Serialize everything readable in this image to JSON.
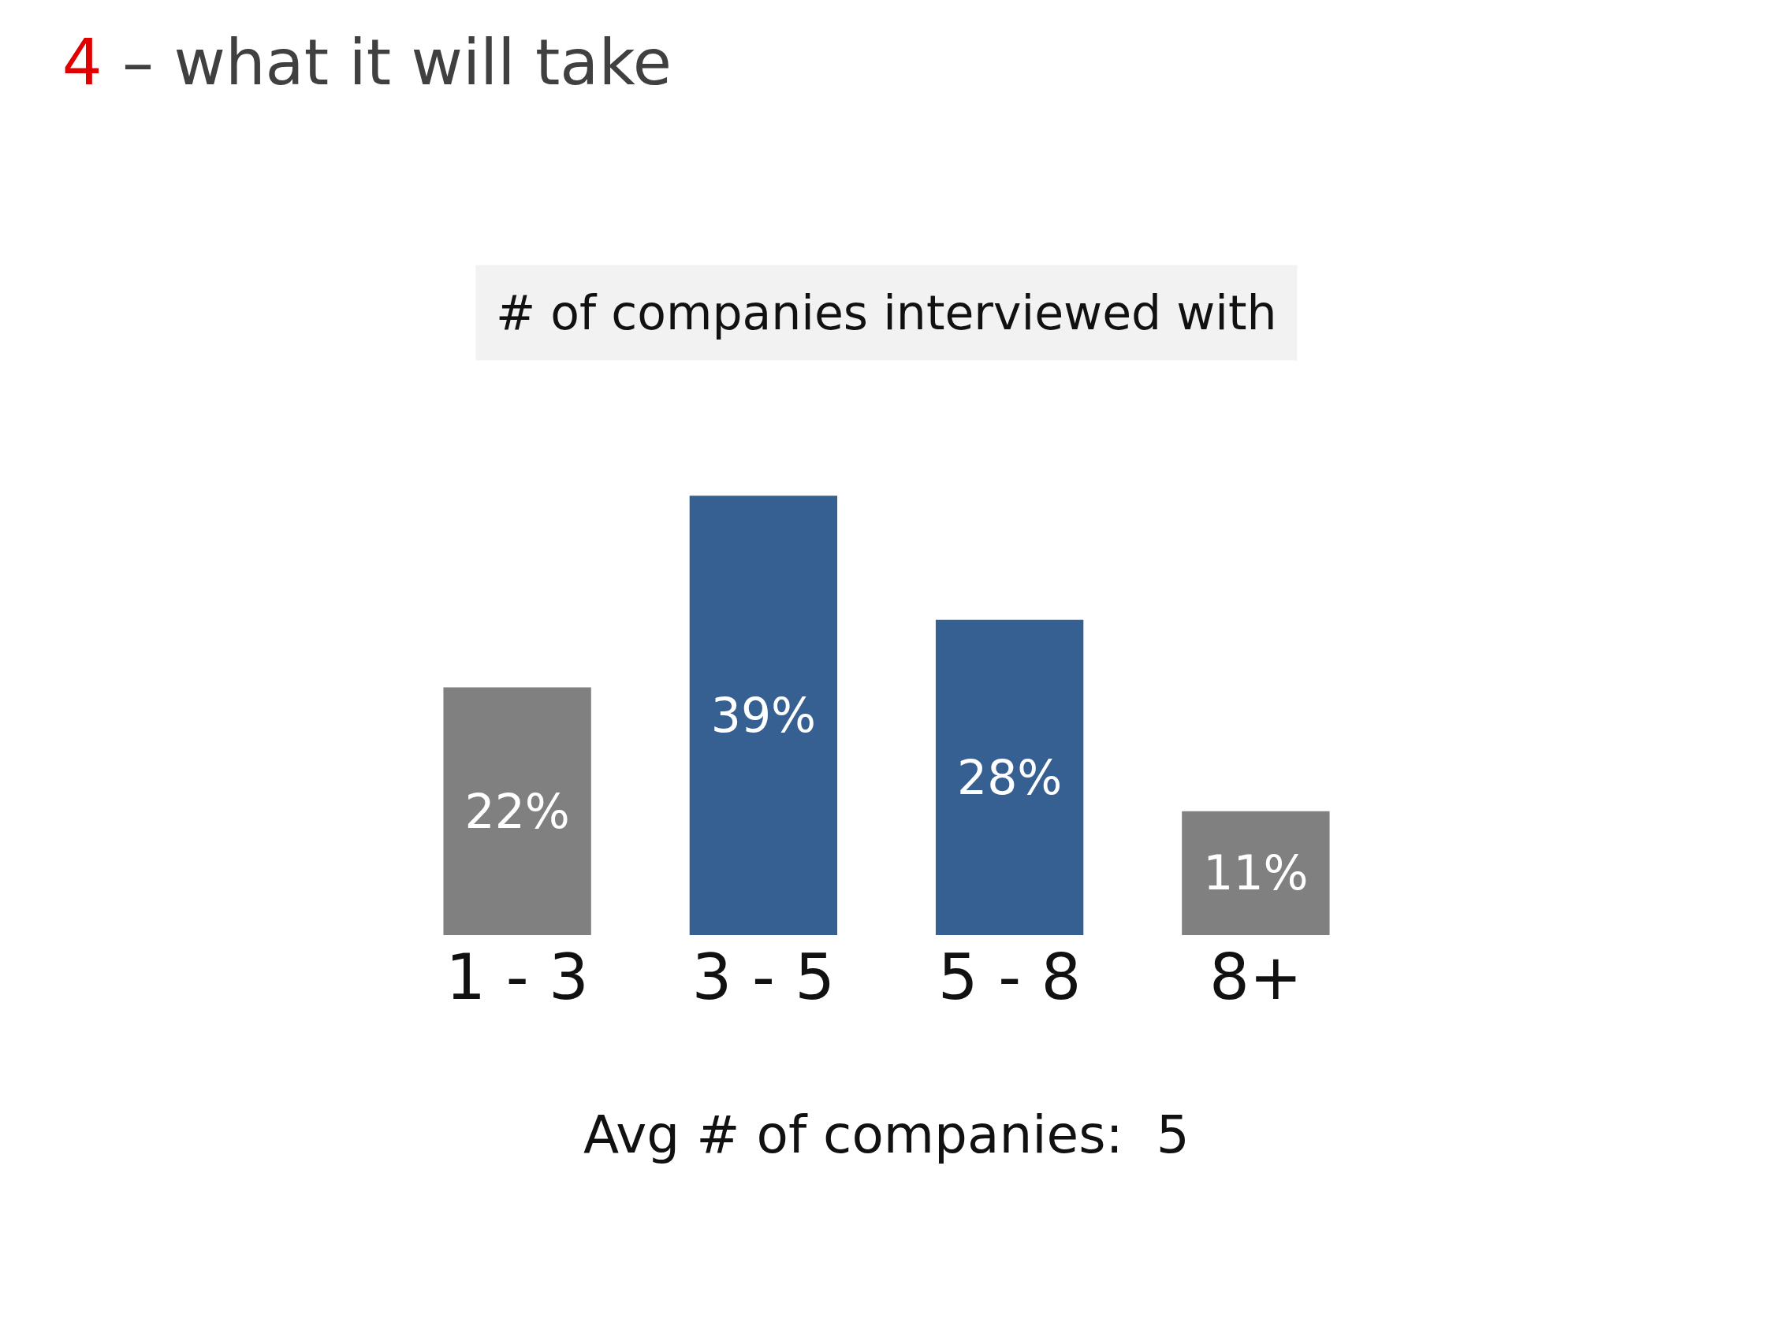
{
  "chart_data": {
    "type": "bar",
    "title": "4 – what it will take",
    "subtitle": "# of companies interviewed with",
    "categories": [
      "1 - 3",
      "3 - 5",
      "5 - 8",
      "8+"
    ],
    "values": [
      22,
      39,
      28,
      11
    ],
    "colors": [
      "#808080",
      "#376092",
      "#376092",
      "#808080"
    ],
    "value_labels": [
      "22%",
      "39%",
      "28%",
      "11%"
    ],
    "annotations": [
      "Avg # of companies:  5"
    ],
    "legend": false
  }
}
